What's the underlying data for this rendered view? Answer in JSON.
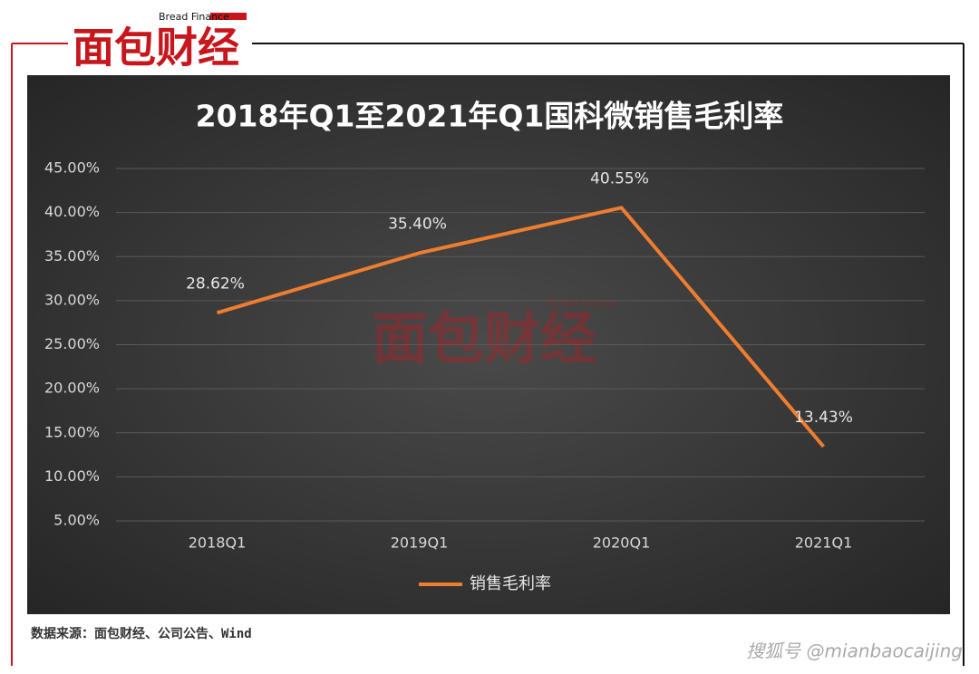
{
  "header": {
    "logo": "面包财经",
    "logo_subtitle": "Bread Finance"
  },
  "chart_data": {
    "type": "line",
    "title": "2018年Q1至2021年Q1国科微销售毛利率",
    "categories": [
      "2018Q1",
      "2019Q1",
      "2020Q1",
      "2021Q1"
    ],
    "series": [
      {
        "name": "销售毛利率",
        "color": "#ee7d2f",
        "values": [
          28.62,
          35.4,
          40.55,
          13.43
        ],
        "value_labels": [
          "28.62%",
          "35.40%",
          "40.55%",
          "13.43%"
        ]
      }
    ],
    "ylim": [
      5,
      45
    ],
    "yticks": [
      {
        "value": 5,
        "label": "5.00%"
      },
      {
        "value": 10,
        "label": "10.00%"
      },
      {
        "value": 15,
        "label": "15.00%"
      },
      {
        "value": 20,
        "label": "20.00%"
      },
      {
        "value": 25,
        "label": "25.00%"
      },
      {
        "value": 30,
        "label": "30.00%"
      },
      {
        "value": 35,
        "label": "35.00%"
      },
      {
        "value": 40,
        "label": "40.00%"
      },
      {
        "value": 45,
        "label": "45.00%"
      }
    ],
    "grid": true,
    "legend": "bottom"
  },
  "footer": {
    "source": "数据来源：面包财经、公司公告、Wind",
    "watermark": "搜狐号 @mianbaocaijing"
  }
}
